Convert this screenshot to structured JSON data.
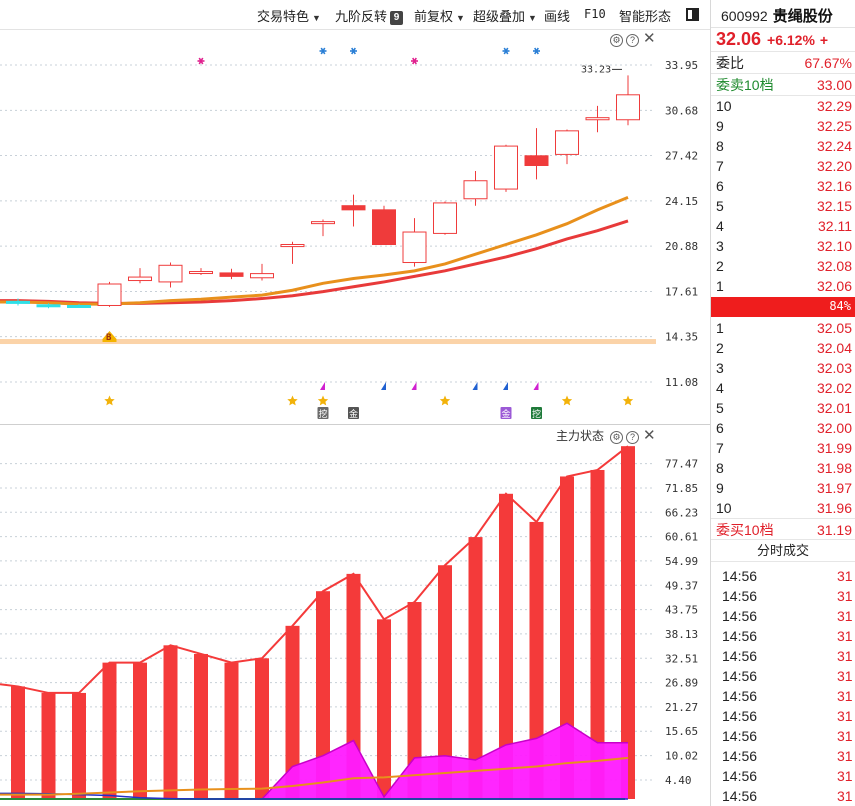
{
  "toolbar": {
    "items": [
      {
        "label": "交易特色",
        "has_arrow": true
      },
      {
        "label": "九阶反转",
        "badge": "9"
      },
      {
        "label": "前复权",
        "has_arrow": true
      },
      {
        "label": "超级叠加",
        "has_arrow": true
      },
      {
        "label": "画线"
      },
      {
        "label": "F10"
      },
      {
        "label": "智能形态"
      }
    ]
  },
  "price_pane": {
    "y_ticks": [
      "33.95",
      "30.68",
      "27.42",
      "24.15",
      "20.88",
      "17.61",
      "14.35",
      "11.08"
    ],
    "max_label": "33.23",
    "signal_letter": "B",
    "tag_labels": [
      "挖",
      "金",
      "金",
      "挖"
    ],
    "colors": {
      "up": "#ef3b3b",
      "ma_fast": "#e8901c",
      "ma_slow": "#e83a3a",
      "cyan": "#2fe0e8",
      "star": "#f2b20a",
      "pink_asterisk": "#e0208e",
      "blue_asterisk": "#2a7fd6"
    }
  },
  "volume_pane": {
    "title": "主力状态",
    "y_ticks": [
      "77.47",
      "71.85",
      "66.23",
      "60.61",
      "54.99",
      "49.37",
      "43.75",
      "38.13",
      "32.51",
      "26.89",
      "21.27",
      "15.65",
      "10.02",
      "4.40"
    ],
    "colors": {
      "bar": "#f43a3a",
      "magenta": "#ff1aff",
      "line_orange": "#e8901c",
      "line_blue": "#2030c8",
      "base_green": "#2a8a3a"
    }
  },
  "quote": {
    "code": "600992",
    "name": "贵绳股份",
    "price": "32.06",
    "change_pct": "+6.12%",
    "extra": "+",
    "weibi_label": "委比",
    "weibi_value": "67.67%",
    "sell_label": "委卖10档",
    "sell_total": "33.00",
    "asks": [
      {
        "level": "10",
        "price": "32.29"
      },
      {
        "level": "9",
        "price": "32.25"
      },
      {
        "level": "8",
        "price": "32.24"
      },
      {
        "level": "7",
        "price": "32.20"
      },
      {
        "level": "6",
        "price": "32.16"
      },
      {
        "level": "5",
        "price": "32.15"
      },
      {
        "level": "4",
        "price": "32.11"
      },
      {
        "level": "3",
        "price": "32.10"
      },
      {
        "level": "2",
        "price": "32.08"
      },
      {
        "level": "1",
        "price": "32.06"
      }
    ],
    "ratio_text": "84%",
    "bids": [
      {
        "level": "1",
        "price": "32.05"
      },
      {
        "level": "2",
        "price": "32.04"
      },
      {
        "level": "3",
        "price": "32.03"
      },
      {
        "level": "4",
        "price": "32.02"
      },
      {
        "level": "5",
        "price": "32.01"
      },
      {
        "level": "6",
        "price": "32.00"
      },
      {
        "level": "7",
        "price": "31.99"
      },
      {
        "level": "8",
        "price": "31.98"
      },
      {
        "level": "9",
        "price": "31.97"
      },
      {
        "level": "10",
        "price": "31.96"
      }
    ],
    "buy_label": "委买10档",
    "buy_total": "31.19",
    "trades_title": "分时成交",
    "trades": [
      {
        "time": "14:56",
        "price": "31"
      },
      {
        "time": "14:56",
        "price": "31"
      },
      {
        "time": "14:56",
        "price": "31"
      },
      {
        "time": "14:56",
        "price": "31"
      },
      {
        "time": "14:56",
        "price": "31"
      },
      {
        "time": "14:56",
        "price": "31"
      },
      {
        "time": "14:56",
        "price": "31"
      },
      {
        "time": "14:56",
        "price": "31"
      },
      {
        "time": "14:56",
        "price": "31"
      },
      {
        "time": "14:56",
        "price": "31"
      },
      {
        "time": "14:56",
        "price": "31"
      },
      {
        "time": "14:56",
        "price": "31"
      }
    ]
  },
  "chart_data": [
    {
      "type": "candlestick",
      "ylim": [
        11.08,
        33.95
      ],
      "y_ticks": [
        33.95,
        30.68,
        27.42,
        24.15,
        20.88,
        17.61,
        14.35,
        11.08
      ],
      "max_label": 33.23,
      "candles": [
        {
          "o": 16.75,
          "c": 16.9,
          "h": 17.1,
          "l": 16.6
        },
        {
          "o": 16.55,
          "c": 16.65,
          "h": 16.75,
          "l": 16.4
        },
        {
          "o": 16.55,
          "c": 16.6,
          "h": 16.7,
          "l": 16.45
        },
        {
          "o": 16.6,
          "c": 18.15,
          "h": 18.3,
          "l": 16.5
        },
        {
          "o": 18.4,
          "c": 18.65,
          "h": 19.3,
          "l": 18.2
        },
        {
          "o": 18.3,
          "c": 19.5,
          "h": 19.7,
          "l": 17.9
        },
        {
          "o": 18.95,
          "c": 19.05,
          "h": 19.3,
          "l": 18.8
        },
        {
          "o": 18.95,
          "c": 18.7,
          "h": 19.25,
          "l": 18.5
        },
        {
          "o": 18.6,
          "c": 18.9,
          "h": 19.6,
          "l": 18.4
        },
        {
          "o": 20.85,
          "c": 21.0,
          "h": 21.2,
          "l": 19.6
        },
        {
          "o": 22.55,
          "c": 22.65,
          "h": 22.8,
          "l": 21.6
        },
        {
          "o": 23.8,
          "c": 23.5,
          "h": 24.6,
          "l": 22.3
        },
        {
          "o": 23.5,
          "c": 21.0,
          "h": 23.8,
          "l": 21.0
        },
        {
          "o": 19.7,
          "c": 21.9,
          "h": 22.9,
          "l": 19.4
        },
        {
          "o": 21.8,
          "c": 24.0,
          "h": 24.1,
          "l": 21.7
        },
        {
          "o": 24.3,
          "c": 25.6,
          "h": 26.3,
          "l": 23.8
        },
        {
          "o": 25.0,
          "c": 28.1,
          "h": 28.2,
          "l": 24.8
        },
        {
          "o": 27.4,
          "c": 26.7,
          "h": 29.4,
          "l": 25.7
        },
        {
          "o": 27.5,
          "c": 29.2,
          "h": 29.3,
          "l": 26.8
        },
        {
          "o": 30.0,
          "c": 30.15,
          "h": 31.0,
          "l": 29.1
        },
        {
          "o": 30.0,
          "c": 31.8,
          "h": 33.2,
          "l": 29.6
        }
      ],
      "ma_fast": [
        16.85,
        16.8,
        16.7,
        16.7,
        16.8,
        16.95,
        17.05,
        17.2,
        17.35,
        17.7,
        18.2,
        18.55,
        18.8,
        19.1,
        19.6,
        20.3,
        21.0,
        21.7,
        22.5,
        23.5,
        24.4
      ],
      "ma_slow": [
        16.95,
        16.9,
        16.8,
        16.75,
        16.75,
        16.8,
        16.85,
        16.95,
        17.1,
        17.3,
        17.6,
        17.95,
        18.3,
        18.7,
        19.1,
        19.6,
        20.1,
        20.7,
        21.4,
        22.0,
        22.7
      ]
    },
    {
      "type": "bar",
      "title": "主力状态",
      "ylim": [
        0,
        82
      ],
      "y_ticks": [
        77.47,
        71.85,
        66.23,
        60.61,
        54.99,
        49.37,
        43.75,
        38.13,
        32.51,
        26.89,
        21.27,
        15.65,
        10.02,
        4.4
      ],
      "series": [
        {
          "values": [
            26.0,
            24.5,
            24.5,
            31.5,
            31.5,
            35.5,
            33.5,
            31.5,
            32.5,
            40.0,
            48.0,
            52.0,
            41.5,
            45.5,
            54.0,
            60.5,
            70.5,
            64.0,
            74.5,
            76.0,
            81.5
          ]
        },
        {
          "values": [
            0,
            0,
            0,
            0,
            0,
            0,
            0,
            0,
            0,
            7.5,
            10.0,
            13.5,
            0.5,
            9.5,
            10.0,
            9.0,
            12.5,
            14.0,
            17.5,
            13.0,
            13.0
          ]
        }
      ],
      "lines": {
        "orange": [
          1.0,
          1.0,
          1.2,
          1.5,
          1.8,
          2.0,
          2.2,
          2.3,
          2.4,
          3.0,
          3.8,
          4.8,
          5.0,
          5.5,
          6.0,
          6.5,
          7.0,
          7.5,
          8.3,
          8.8,
          9.5
        ],
        "blue": [
          1.3,
          1.2,
          1.0,
          0.8,
          0.3,
          0.1,
          0,
          0,
          0,
          0,
          0,
          0,
          0,
          0,
          0,
          0,
          0,
          0,
          0,
          0,
          0
        ]
      }
    }
  ]
}
